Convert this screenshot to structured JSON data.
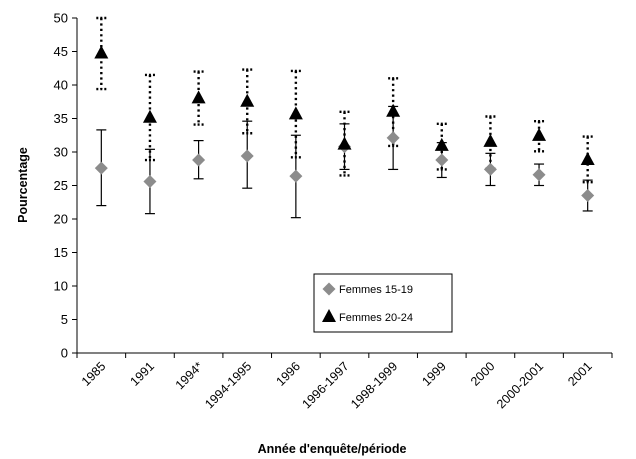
{
  "chart_data": {
    "type": "scatter",
    "categories": [
      "1985",
      "1991",
      "1994*",
      "1994-1995",
      "1996",
      "1996-1997",
      "1998-1999",
      "1999",
      "2000",
      "2000-2001",
      "2001"
    ],
    "series": [
      {
        "name": "Femmes 15-19",
        "marker": "diamond",
        "color": "#8c8c8c",
        "error_style": "solid",
        "values": [
          27.6,
          25.6,
          28.8,
          29.4,
          26.4,
          30.8,
          32.1,
          28.8,
          27.4,
          26.6,
          23.5
        ],
        "lower": [
          22.0,
          20.8,
          26.0,
          24.6,
          20.2,
          27.4,
          27.4,
          26.2,
          25.0,
          25.0,
          21.2
        ],
        "upper": [
          33.3,
          30.4,
          31.7,
          34.6,
          32.5,
          34.2,
          36.8,
          31.4,
          29.8,
          28.2,
          25.8
        ]
      },
      {
        "name": "Femmes 20-24",
        "marker": "triangle",
        "color": "#000000",
        "error_style": "dotted",
        "values": [
          44.7,
          35.1,
          38.0,
          37.5,
          35.6,
          31.1,
          36.0,
          30.9,
          31.5,
          32.4,
          28.8
        ],
        "lower": [
          39.4,
          28.8,
          34.1,
          32.8,
          29.2,
          26.5,
          30.9,
          27.4,
          27.5,
          30.1,
          25.5
        ],
        "upper": [
          50.0,
          41.5,
          42.0,
          42.3,
          42.1,
          36.0,
          41.0,
          34.2,
          35.3,
          34.6,
          32.3
        ]
      }
    ],
    "xlabel": "Année d'enquête/période",
    "ylabel": "Pourcentage",
    "ylim": [
      0,
      50
    ],
    "yticks": [
      0,
      5,
      10,
      15,
      20,
      25,
      30,
      35,
      40,
      45,
      50
    ],
    "grid": false,
    "legend_position": "center"
  }
}
